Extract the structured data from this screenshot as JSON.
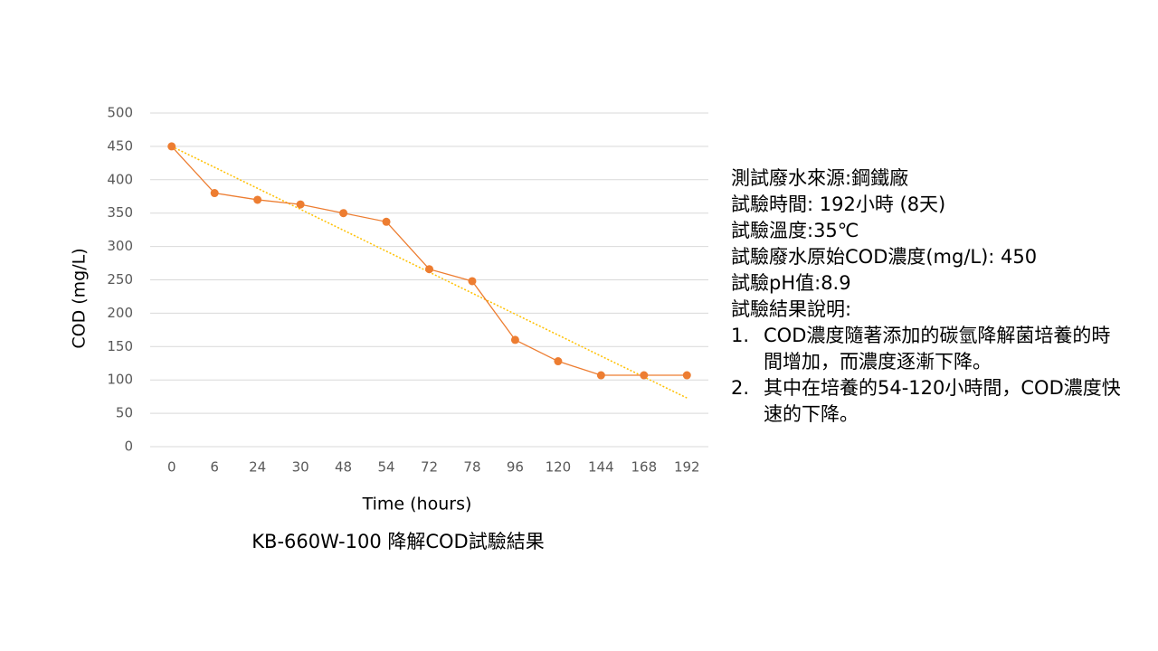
{
  "chart_data": {
    "type": "line",
    "title": "KB-660W-100 降解COD試驗結果",
    "x_label": "Time (hours)",
    "y_label": "COD (mg/L)",
    "categories": [
      "0",
      "6",
      "24",
      "30",
      "48",
      "54",
      "72",
      "78",
      "96",
      "120",
      "144",
      "168",
      "192"
    ],
    "series": [
      {
        "color": "#ed7d31",
        "values": [
          450,
          380,
          370,
          363,
          350,
          337,
          266,
          248,
          160,
          128,
          107,
          107,
          107
        ]
      }
    ],
    "trendline": {
      "color": "#ffc000",
      "start": 450,
      "end": 73
    },
    "ylim": [
      0,
      500
    ],
    "yticks": [
      0,
      50,
      100,
      150,
      200,
      250,
      300,
      350,
      400,
      450,
      500
    ],
    "grid": true
  },
  "notes": {
    "lines": [
      "測試廢水來源:鋼鐵廠",
      "試驗時間: 192小時 (8天)",
      "試驗溫度:35℃",
      "試驗廢水原始COD濃度(mg/L): 450",
      "試驗pH值:8.9",
      "試驗結果說明:"
    ],
    "items": [
      {
        "number": "1.",
        "text": "COD濃度隨著添加的碳氫降解菌培養的時間增加，而濃度逐漸下降。"
      },
      {
        "number": "2.",
        "text": "其中在培養的54-120小時間，COD濃度快速的下降。"
      }
    ]
  }
}
